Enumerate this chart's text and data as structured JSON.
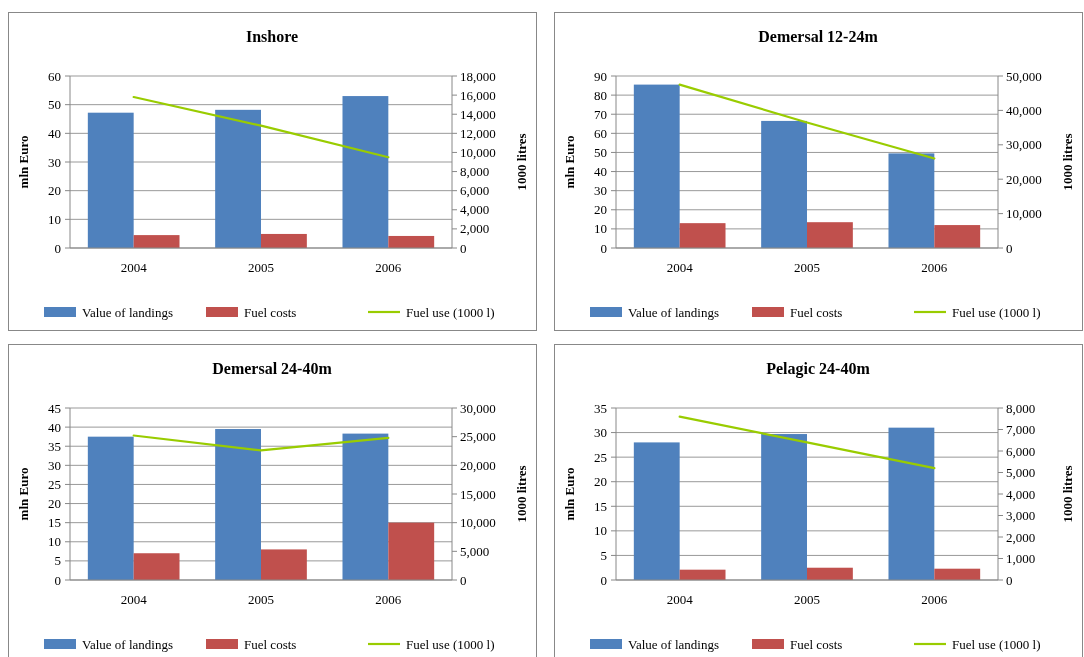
{
  "chart_data": [
    {
      "type": "bar",
      "title": "Inshore",
      "categories": [
        "2004",
        "2005",
        "2006"
      ],
      "ylabel": "mln Euro",
      "y2label": "1000 litres",
      "ylim": [
        0,
        60
      ],
      "yticks": [
        0,
        10,
        20,
        30,
        40,
        50,
        60
      ],
      "y2lim": [
        0,
        18000
      ],
      "y2ticks": [
        {
          "value": 0,
          "label": "0"
        },
        {
          "value": 2000,
          "label": "2,000"
        },
        {
          "value": 4000,
          "label": "4,000"
        },
        {
          "value": 6000,
          "label": "6,000"
        },
        {
          "value": 8000,
          "label": "8,000"
        },
        {
          "value": 10000,
          "label": "10,000"
        },
        {
          "value": 12000,
          "label": "12,000"
        },
        {
          "value": 14000,
          "label": "14,000"
        },
        {
          "value": 16000,
          "label": "16,000"
        },
        {
          "value": 18000,
          "label": "18,000"
        }
      ],
      "grid": "y",
      "legend": "bottom",
      "series": [
        {
          "name": "Value of landings",
          "color": "#4f81bd",
          "values": [
            47.2,
            48.2,
            53
          ]
        },
        {
          "name": "Fuel costs",
          "color": "#c0504d",
          "values": [
            4.5,
            4.9,
            4.2
          ]
        },
        {
          "name": "Fuel use (1000 l)",
          "type": "line",
          "axis": "y2",
          "color": "#99cc00",
          "values": [
            15800,
            12800,
            9500
          ]
        }
      ]
    },
    {
      "type": "bar",
      "title": "Demersal 12-24m",
      "categories": [
        "2004",
        "2005",
        "2006"
      ],
      "ylabel": "mln Euro",
      "y2label": "1000 litres",
      "ylim": [
        0,
        90
      ],
      "yticks": [
        0,
        10,
        20,
        30,
        40,
        50,
        60,
        70,
        80,
        90
      ],
      "y2lim": [
        0,
        50000
      ],
      "y2ticks": [
        {
          "value": 0,
          "label": "0"
        },
        {
          "value": 10000,
          "label": "10,000"
        },
        {
          "value": 20000,
          "label": "20,000"
        },
        {
          "value": 30000,
          "label": "30,000"
        },
        {
          "value": 40000,
          "label": "40,000"
        },
        {
          "value": 50000,
          "label": "50,000"
        }
      ],
      "grid": "y",
      "legend": "bottom",
      "series": [
        {
          "name": "Value of landings",
          "color": "#4f81bd",
          "values": [
            85.5,
            66.5,
            49.5
          ]
        },
        {
          "name": "Fuel costs",
          "color": "#c0504d",
          "values": [
            13,
            13.5,
            12
          ]
        },
        {
          "name": "Fuel use (1000 l)",
          "type": "line",
          "axis": "y2",
          "color": "#99cc00",
          "values": [
            47500,
            36500,
            26000
          ]
        }
      ]
    },
    {
      "type": "bar",
      "title": "Demersal 24-40m",
      "categories": [
        "2004",
        "2005",
        "2006"
      ],
      "ylabel": "mln Euro",
      "y2label": "1000 litres",
      "ylim": [
        0,
        45
      ],
      "yticks": [
        0,
        5,
        10,
        15,
        20,
        25,
        30,
        35,
        40,
        45
      ],
      "y2lim": [
        0,
        30000
      ],
      "y2ticks": [
        {
          "value": 0,
          "label": "0"
        },
        {
          "value": 5000,
          "label": "5,000"
        },
        {
          "value": 10000,
          "label": "10,000"
        },
        {
          "value": 15000,
          "label": "15,000"
        },
        {
          "value": 20000,
          "label": "20,000"
        },
        {
          "value": 25000,
          "label": "25,000"
        },
        {
          "value": 30000,
          "label": "30,000"
        }
      ],
      "grid": "y",
      "legend": "bottom",
      "series": [
        {
          "name": "Value of landings",
          "color": "#4f81bd",
          "values": [
            37.5,
            39.5,
            38.3
          ]
        },
        {
          "name": "Fuel costs",
          "color": "#c0504d",
          "values": [
            7,
            8,
            15
          ]
        },
        {
          "name": "Fuel use (1000 l)",
          "type": "line",
          "axis": "y2",
          "color": "#99cc00",
          "values": [
            25200,
            22600,
            24800
          ]
        }
      ]
    },
    {
      "type": "bar",
      "title": "Pelagic 24-40m",
      "categories": [
        "2004",
        "2005",
        "2006"
      ],
      "ylabel": "mln Euro",
      "y2label": "1000 litres",
      "ylim": [
        0,
        35
      ],
      "yticks": [
        0,
        5,
        10,
        15,
        20,
        25,
        30,
        35
      ],
      "y2lim": [
        0,
        8000
      ],
      "y2ticks": [
        {
          "value": 0,
          "label": "0"
        },
        {
          "value": 1000,
          "label": "1,000"
        },
        {
          "value": 2000,
          "label": "2,000"
        },
        {
          "value": 3000,
          "label": "3,000"
        },
        {
          "value": 4000,
          "label": "4,000"
        },
        {
          "value": 5000,
          "label": "5,000"
        },
        {
          "value": 6000,
          "label": "6,000"
        },
        {
          "value": 7000,
          "label": "7,000"
        },
        {
          "value": 8000,
          "label": "8,000"
        }
      ],
      "grid": "y",
      "legend": "bottom",
      "series": [
        {
          "name": "Value of landings",
          "color": "#4f81bd",
          "values": [
            28,
            29.7,
            31
          ]
        },
        {
          "name": "Fuel costs",
          "color": "#c0504d",
          "values": [
            2.1,
            2.5,
            2.3
          ]
        },
        {
          "name": "Fuel use (1000 l)",
          "type": "line",
          "axis": "y2",
          "color": "#99cc00",
          "values": [
            7600,
            6400,
            5200
          ]
        }
      ]
    }
  ]
}
